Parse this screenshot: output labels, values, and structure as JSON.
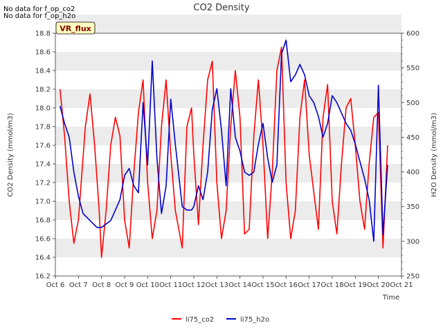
{
  "notes": [
    "No data for f_op_co2",
    "No data for f_op_h2o"
  ],
  "badge": "VR_flux",
  "colors": {
    "co2": "#ff0000",
    "h2o": "#0000cc",
    "band": "#ececec",
    "badge_bg": "#ffffc0",
    "badge_border": "#000000",
    "badge_text": "#8b0000"
  },
  "chart_data": {
    "type": "line",
    "title": "CO2 Density",
    "xlabel": "Time",
    "ylabel_left": "CO2 Density (mmol/m3)",
    "ylabel_right": "H2O Density (mmol/m3)",
    "xlim": [
      6,
      21
    ],
    "ylim_left": [
      16.2,
      18.8
    ],
    "ylim_right": [
      250,
      600
    ],
    "x_ticks": [
      "Oct 6",
      "Oct 7",
      "Oct 8",
      "Oct 9",
      "Oct 10",
      "Oct 11",
      "Oct 12",
      "Oct 13",
      "Oct 14",
      "Oct 15",
      "Oct 16",
      "Oct 17",
      "Oct 18",
      "Oct 19",
      "Oct 20",
      "Oct 21"
    ],
    "y_ticks_left": [
      "16.2",
      "16.4",
      "16.6",
      "16.8",
      "17.0",
      "17.2",
      "17.4",
      "17.6",
      "17.8",
      "18.0",
      "18.2",
      "18.4",
      "18.6",
      "18.8"
    ],
    "y_ticks_right": [
      "250",
      "300",
      "350",
      "400",
      "450",
      "500",
      "550",
      "600"
    ],
    "legend": "bottom-center",
    "grid": "alternating horizontal bands",
    "series": [
      {
        "name": "li75_co2",
        "axis": "left",
        "x": [
          6.2,
          6.4,
          6.6,
          6.8,
          7.0,
          7.3,
          7.5,
          7.7,
          7.9,
          8.0,
          8.2,
          8.4,
          8.6,
          8.8,
          9.0,
          9.2,
          9.4,
          9.6,
          9.8,
          10.0,
          10.2,
          10.4,
          10.6,
          10.8,
          11.0,
          11.2,
          11.5,
          11.7,
          11.9,
          12.0,
          12.2,
          12.4,
          12.6,
          12.8,
          13.0,
          13.2,
          13.4,
          13.6,
          13.8,
          14.0,
          14.2,
          14.4,
          14.6,
          14.8,
          15.0,
          15.2,
          15.4,
          15.6,
          15.8,
          16.0,
          16.2,
          16.4,
          16.6,
          16.8,
          17.0,
          17.2,
          17.4,
          17.6,
          17.8,
          18.0,
          18.2,
          18.4,
          18.6,
          18.8,
          19.0,
          19.2,
          19.4,
          19.6,
          19.8,
          20.0,
          20.2,
          20.4
        ],
        "y": [
          18.2,
          17.7,
          17.0,
          16.55,
          16.8,
          17.8,
          18.15,
          17.6,
          16.9,
          16.4,
          16.9,
          17.6,
          17.9,
          17.7,
          16.8,
          16.5,
          17.3,
          17.95,
          18.3,
          17.2,
          16.6,
          16.9,
          17.8,
          18.3,
          17.5,
          16.9,
          16.5,
          17.8,
          18.0,
          17.5,
          16.75,
          17.6,
          18.3,
          18.5,
          17.2,
          16.6,
          16.9,
          17.8,
          18.4,
          17.9,
          16.65,
          16.7,
          17.7,
          18.3,
          17.6,
          16.6,
          17.3,
          18.4,
          18.65,
          17.2,
          16.6,
          16.9,
          17.9,
          18.3,
          17.5,
          17.1,
          16.7,
          17.9,
          18.25,
          17.0,
          16.65,
          17.4,
          18.0,
          18.1,
          17.6,
          17.0,
          16.7,
          17.4,
          17.9,
          17.95,
          16.5,
          17.6
        ]
      },
      {
        "name": "li75_h2o",
        "axis": "right",
        "x": [
          6.2,
          6.4,
          6.6,
          6.8,
          7.0,
          7.2,
          7.5,
          7.8,
          8.0,
          8.2,
          8.4,
          8.6,
          8.8,
          9.0,
          9.2,
          9.4,
          9.6,
          9.8,
          10.0,
          10.2,
          10.4,
          10.6,
          10.8,
          11.0,
          11.2,
          11.5,
          11.7,
          11.9,
          12.0,
          12.2,
          12.4,
          12.6,
          12.8,
          13.0,
          13.2,
          13.4,
          13.6,
          13.8,
          14.0,
          14.2,
          14.4,
          14.6,
          14.8,
          15.0,
          15.2,
          15.4,
          15.6,
          15.8,
          16.0,
          16.2,
          16.4,
          16.6,
          16.8,
          17.0,
          17.2,
          17.4,
          17.6,
          17.8,
          18.0,
          18.2,
          18.4,
          18.6,
          18.8,
          19.0,
          19.2,
          19.4,
          19.6,
          19.8,
          20.0,
          20.2,
          20.4
        ],
        "y": [
          495,
          470,
          450,
          400,
          365,
          340,
          330,
          320,
          320,
          325,
          330,
          345,
          360,
          395,
          405,
          380,
          370,
          500,
          410,
          560,
          420,
          340,
          380,
          505,
          440,
          350,
          345,
          345,
          350,
          380,
          360,
          400,
          490,
          520,
          460,
          380,
          520,
          450,
          430,
          400,
          395,
          400,
          440,
          470,
          420,
          385,
          410,
          570,
          590,
          530,
          540,
          555,
          540,
          510,
          500,
          480,
          450,
          470,
          510,
          500,
          485,
          470,
          460,
          440,
          415,
          390,
          360,
          300,
          525,
          310,
          410
        ]
      }
    ]
  },
  "legend_entries": [
    {
      "label": "li75_co2"
    },
    {
      "label": "li75_h2o"
    }
  ]
}
